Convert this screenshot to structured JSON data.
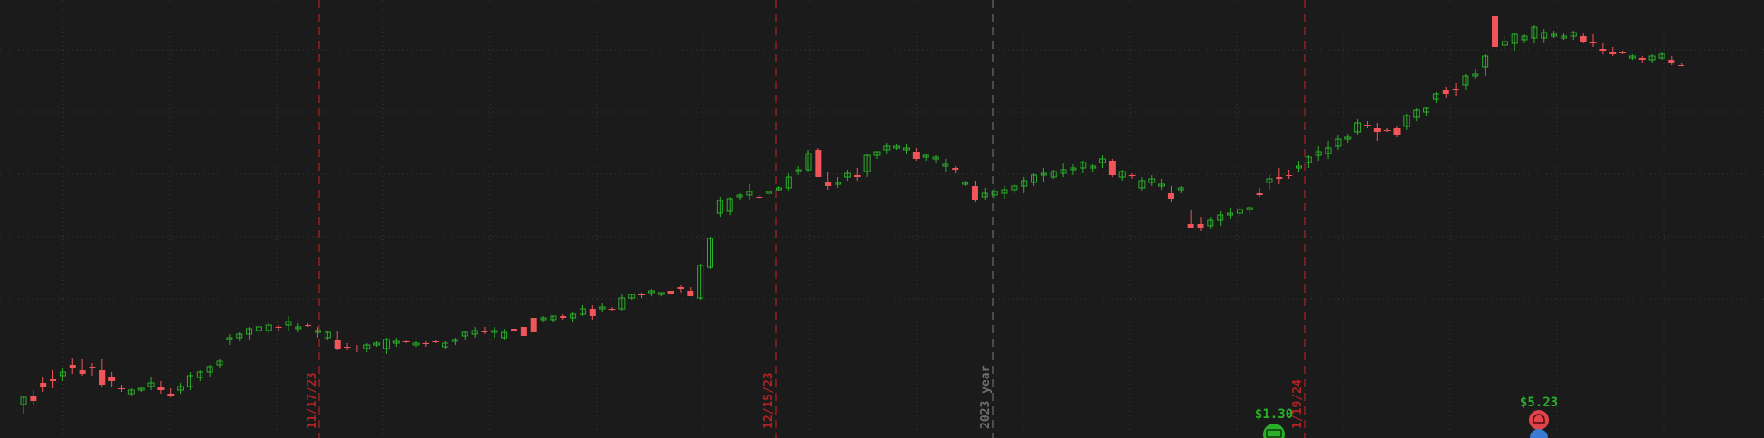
{
  "chart_data": {
    "type": "candlestick",
    "grid": true,
    "colors": {
      "background": "#1b1b1b",
      "up": "#2ab02a",
      "down": "#f0555a",
      "grid": "#3a3a3a",
      "marker_red": "#b22222",
      "marker_gray": "#6e6e6e",
      "event_green": "#2ab02a",
      "event_red": "#e0444a",
      "event_blue": "#3a7bd5"
    },
    "date_markers": [
      {
        "label": "11/17/23",
        "kind": "date"
      },
      {
        "label": "12/15/23",
        "kind": "date"
      },
      {
        "label": "2023 year",
        "kind": "year"
      },
      {
        "label": "1/19/24",
        "kind": "date"
      }
    ],
    "events": [
      {
        "label": "$1.30",
        "kind": "dividend",
        "icon": "money-icon"
      },
      {
        "label": "$5.23",
        "kind": "earnings",
        "icon": "earnings-icon"
      }
    ],
    "candles": [
      [
        448,
        458,
        438,
        440
      ],
      [
        438,
        432,
        448,
        444
      ],
      [
        424,
        418,
        434,
        428
      ],
      [
        420,
        410,
        430,
        422
      ],
      [
        416,
        408,
        422,
        412
      ],
      [
        404,
        396,
        414,
        408
      ],
      [
        410,
        398,
        416,
        414
      ],
      [
        406,
        402,
        416,
        408
      ],
      [
        410,
        398,
        428,
        426
      ],
      [
        418,
        412,
        428,
        422
      ],
      [
        430,
        426,
        434,
        430
      ],
      [
        436,
        430,
        438,
        432
      ],
      [
        432,
        428,
        434,
        430
      ],
      [
        428,
        418,
        432,
        424
      ],
      [
        428,
        422,
        436,
        432
      ],
      [
        436,
        430,
        440,
        438
      ],
      [
        432,
        424,
        436,
        428
      ],
      [
        428,
        412,
        432,
        416
      ],
      [
        418,
        410,
        422,
        412
      ],
      [
        412,
        404,
        418,
        406
      ],
      [
        404,
        398,
        408,
        400
      ],
      [
        376,
        370,
        382,
        374
      ],
      [
        374,
        368,
        378,
        370
      ],
      [
        370,
        362,
        376,
        364
      ],
      [
        366,
        360,
        372,
        362
      ],
      [
        366,
        356,
        370,
        360
      ],
      [
        362,
        360,
        366,
        362
      ],
      [
        360,
        350,
        366,
        356
      ],
      [
        364,
        358,
        368,
        362
      ],
      [
        360,
        358,
        362,
        360
      ],
      [
        368,
        362,
        374,
        366
      ],
      [
        374,
        366,
        376,
        368
      ],
      [
        376,
        366,
        388,
        386
      ],
      [
        384,
        380,
        388,
        384
      ],
      [
        386,
        382,
        390,
        386
      ],
      [
        386,
        380,
        390,
        382
      ],
      [
        382,
        378,
        384,
        380
      ],
      [
        386,
        374,
        392,
        376
      ],
      [
        380,
        374,
        384,
        378
      ],
      [
        378,
        376,
        380,
        378
      ],
      [
        382,
        378,
        384,
        380
      ],
      [
        380,
        378,
        384,
        380
      ],
      [
        378,
        376,
        380,
        378
      ],
      [
        384,
        378,
        386,
        380
      ],
      [
        378,
        374,
        382,
        376
      ],
      [
        372,
        366,
        376,
        368
      ],
      [
        370,
        362,
        374,
        366
      ],
      [
        366,
        362,
        370,
        368
      ],
      [
        368,
        362,
        374,
        366
      ],
      [
        374,
        364,
        376,
        368
      ],
      [
        364,
        362,
        368,
        366
      ],
      [
        362,
        362,
        372,
        372
      ],
      [
        352,
        354,
        362,
        368
      ],
      [
        354,
        350,
        356,
        352
      ],
      [
        354,
        350,
        356,
        350
      ],
      [
        350,
        348,
        354,
        352
      ],
      [
        352,
        346,
        356,
        348
      ],
      [
        348,
        338,
        350,
        342
      ],
      [
        342,
        338,
        354,
        350
      ],
      [
        342,
        336,
        346,
        340
      ],
      [
        342,
        340,
        344,
        342
      ],
      [
        342,
        326,
        344,
        330
      ],
      [
        330,
        326,
        332,
        326
      ],
      [
        326,
        324,
        330,
        326
      ],
      [
        324,
        320,
        328,
        322
      ],
      [
        326,
        324,
        328,
        324
      ],
      [
        322,
        322,
        326,
        326
      ],
      [
        318,
        316,
        324,
        320
      ],
      [
        322,
        318,
        326,
        328
      ],
      [
        330,
        292,
        332,
        294
      ],
      [
        296,
        262,
        298,
        264
      ],
      [
        236,
        218,
        240,
        222
      ],
      [
        234,
        218,
        238,
        220
      ],
      [
        218,
        214,
        222,
        216
      ],
      [
        216,
        204,
        222,
        212
      ],
      [
        218,
        216,
        220,
        218
      ],
      [
        214,
        200,
        218,
        212
      ],
      [
        210,
        206,
        212,
        208
      ],
      [
        208,
        192,
        212,
        196
      ],
      [
        190,
        184,
        194,
        188
      ],
      [
        188,
        166,
        190,
        170
      ],
      [
        166,
        164,
        196,
        196
      ],
      [
        202,
        190,
        210,
        206
      ],
      [
        204,
        196,
        208,
        202
      ],
      [
        196,
        188,
        200,
        192
      ],
      [
        194,
        186,
        200,
        196
      ],
      [
        190,
        170,
        196,
        172
      ],
      [
        172,
        168,
        176,
        168
      ],
      [
        166,
        158,
        170,
        162
      ],
      [
        164,
        160,
        166,
        162
      ],
      [
        166,
        160,
        170,
        164
      ],
      [
        168,
        164,
        178,
        176
      ],
      [
        174,
        170,
        178,
        172
      ],
      [
        176,
        172,
        180,
        174
      ],
      [
        184,
        176,
        190,
        182
      ],
      [
        186,
        184,
        192,
        188
      ],
      [
        204,
        200,
        206,
        202
      ],
      [
        206,
        200,
        224,
        222
      ],
      [
        218,
        208,
        222,
        214
      ],
      [
        216,
        208,
        220,
        212
      ],
      [
        214,
        206,
        220,
        210
      ],
      [
        210,
        204,
        214,
        206
      ],
      [
        206,
        196,
        214,
        200
      ],
      [
        202,
        192,
        206,
        194
      ],
      [
        194,
        186,
        202,
        192
      ],
      [
        196,
        188,
        198,
        190
      ],
      [
        192,
        180,
        196,
        188
      ],
      [
        188,
        182,
        194,
        186
      ],
      [
        186,
        178,
        192,
        180
      ],
      [
        186,
        182,
        190,
        184
      ],
      [
        180,
        172,
        186,
        176
      ],
      [
        178,
        176,
        196,
        194
      ],
      [
        196,
        188,
        200,
        190
      ],
      [
        194,
        192,
        198,
        194
      ],
      [
        208,
        196,
        212,
        200
      ],
      [
        202,
        194,
        206,
        198
      ],
      [
        206,
        198,
        210,
        204
      ],
      [
        214,
        206,
        224,
        220
      ],
      [
        210,
        206,
        214,
        208
      ],
      [
        248,
        232,
        252,
        252
      ],
      [
        248,
        240,
        256,
        252
      ],
      [
        250,
        240,
        254,
        244
      ],
      [
        244,
        234,
        250,
        238
      ],
      [
        238,
        230,
        242,
        236
      ],
      [
        236,
        228,
        240,
        232
      ],
      [
        232,
        228,
        236,
        230
      ],
      [
        214,
        208,
        218,
        216
      ],
      [
        202,
        194,
        210,
        198
      ],
      [
        196,
        186,
        204,
        198
      ],
      [
        194,
        188,
        198,
        194
      ],
      [
        186,
        178,
        190,
        184
      ],
      [
        180,
        172,
        186,
        174
      ],
      [
        172,
        162,
        178,
        168
      ],
      [
        170,
        156,
        176,
        164
      ],
      [
        162,
        150,
        166,
        154
      ],
      [
        154,
        148,
        158,
        152
      ],
      [
        146,
        132,
        150,
        136
      ],
      [
        138,
        134,
        142,
        140
      ],
      [
        142,
        136,
        156,
        146
      ],
      [
        144,
        142,
        146,
        144
      ],
      [
        142,
        140,
        152,
        150
      ],
      [
        140,
        126,
        144,
        128
      ],
      [
        130,
        120,
        134,
        122
      ],
      [
        124,
        118,
        128,
        120
      ],
      [
        110,
        102,
        114,
        104
      ],
      [
        100,
        96,
        108,
        104
      ],
      [
        98,
        92,
        106,
        100
      ],
      [
        94,
        82,
        100,
        84
      ],
      [
        84,
        76,
        88,
        82
      ],
      [
        74,
        60,
        84,
        62
      ],
      [
        18,
        2,
        70,
        52
      ],
      [
        50,
        40,
        54,
        46
      ],
      [
        48,
        36,
        56,
        38
      ],
      [
        44,
        38,
        48,
        40
      ],
      [
        42,
        28,
        48,
        30
      ],
      [
        42,
        32,
        48,
        36
      ],
      [
        40,
        34,
        42,
        38
      ],
      [
        42,
        36,
        44,
        40
      ],
      [
        40,
        34,
        44,
        36
      ],
      [
        40,
        36,
        48,
        46
      ],
      [
        46,
        38,
        52,
        48
      ],
      [
        54,
        48,
        60,
        56
      ],
      [
        58,
        52,
        62,
        60
      ],
      [
        58,
        56,
        60,
        58
      ],
      [
        64,
        60,
        66,
        62
      ],
      [
        64,
        62,
        70,
        66
      ],
      [
        66,
        60,
        70,
        62
      ],
      [
        64,
        58,
        66,
        60
      ],
      [
        66,
        62,
        72,
        70
      ],
      [
        72,
        70,
        72,
        72
      ]
    ]
  }
}
